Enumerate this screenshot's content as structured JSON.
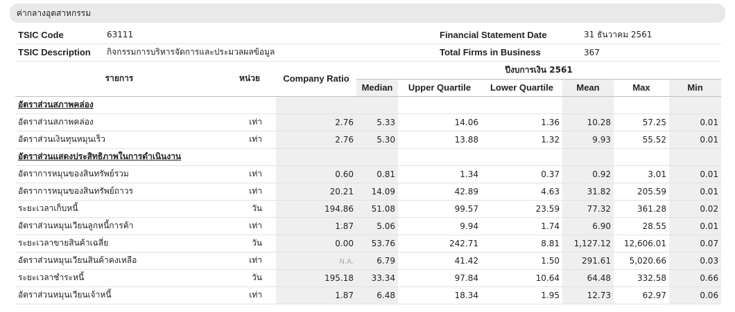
{
  "panel_title": "ค่ากลางอุตสาหกรรม",
  "info": {
    "tsic_code_label": "TSIC Code",
    "tsic_code": "63111",
    "tsic_desc_label": "TSIC Description",
    "tsic_desc": "กิจกรรมการบริหารจัดการและประมวลผลข้อมูล",
    "fs_date_label": "Financial Statement Date",
    "fs_date": "31 ธันวาคม 2561",
    "firms_label": "Total Firms in Business",
    "firms": "367"
  },
  "table": {
    "headers": {
      "item": "รายการ",
      "unit": "หน่วย",
      "company_ratio": "Company Ratio",
      "fiscal_year": "ปีงบการเงิน 2561",
      "median": "Median",
      "upper_quartile": "Upper Quartile",
      "lower_quartile": "Lower Quartile",
      "mean": "Mean",
      "max": "Max",
      "min": "Min"
    },
    "rows": [
      {
        "section": "อัตราส่วนสภาพคล่อง"
      },
      {
        "name": "อัตราส่วนสภาพคล่อง",
        "unit": "เท่า",
        "company": "2.76",
        "median": "5.33",
        "upper": "14.06",
        "lower": "1.36",
        "mean": "10.28",
        "max": "57.25",
        "min": "0.01"
      },
      {
        "name": "อัตราส่วนเงินทุนหมุนเร็ว",
        "unit": "เท่า",
        "company": "2.76",
        "median": "5.30",
        "upper": "13.88",
        "lower": "1.32",
        "mean": "9.93",
        "max": "55.52",
        "min": "0.01"
      },
      {
        "section": "อัตราส่วนแสดงประสิทธิภาพในการดำเนินงาน"
      },
      {
        "name": "อัตราการหมุนของสินทรัพย์รวม",
        "unit": "เท่า",
        "company": "0.60",
        "median": "0.81",
        "upper": "1.34",
        "lower": "0.37",
        "mean": "0.92",
        "max": "3.01",
        "min": "0.01"
      },
      {
        "name": "อัตราการหมุนของสินทรัพย์ถาวร",
        "unit": "เท่า",
        "company": "20.21",
        "median": "14.09",
        "upper": "42.89",
        "lower": "4.63",
        "mean": "31.82",
        "max": "205.59",
        "min": "0.01"
      },
      {
        "name": "ระยะเวลาเก็บหนี้",
        "unit": "วัน",
        "company": "194.86",
        "median": "51.08",
        "upper": "99.57",
        "lower": "23.59",
        "mean": "77.32",
        "max": "361.28",
        "min": "0.02"
      },
      {
        "name": "อัตราส่วนหมุนเวียนลูกหนี้การค้า",
        "unit": "เท่า",
        "company": "1.87",
        "median": "5.06",
        "upper": "9.94",
        "lower": "1.74",
        "mean": "6.90",
        "max": "28.55",
        "min": "0.01"
      },
      {
        "name": "ระยะเวลาขายสินค้าเฉลี่ย",
        "unit": "วัน",
        "company": "0.00",
        "median": "53.76",
        "upper": "242.71",
        "lower": "8.81",
        "mean": "1,127.12",
        "max": "12,606.01",
        "min": "0.07"
      },
      {
        "name": "อัตราส่วนหมุนเวียนสินค้าคงเหลือ",
        "unit": "เท่า",
        "company": "N.A.",
        "median": "6.79",
        "upper": "41.42",
        "lower": "1.50",
        "mean": "291.61",
        "max": "5,020.66",
        "min": "0.03"
      },
      {
        "name": "ระยะเวลาชำระหนี้",
        "unit": "วัน",
        "company": "195.18",
        "median": "33.34",
        "upper": "97.84",
        "lower": "10.64",
        "mean": "64.48",
        "max": "332.58",
        "min": "0.66"
      },
      {
        "name": "อัตราส่วนหมุนเวียนเจ้าหนี้",
        "unit": "เท่า",
        "company": "1.87",
        "median": "6.48",
        "upper": "18.34",
        "lower": "1.95",
        "mean": "12.73",
        "max": "62.97",
        "min": "0.06"
      }
    ]
  }
}
